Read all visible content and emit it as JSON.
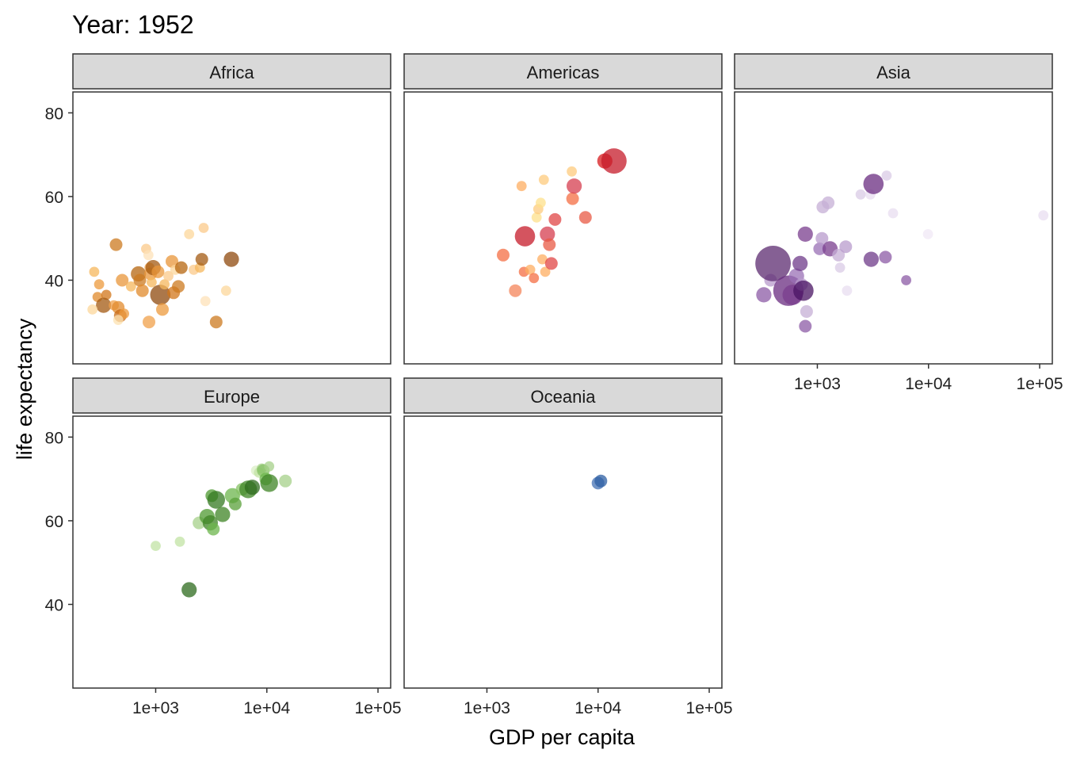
{
  "chart_data": {
    "type": "scatter",
    "title": "Year: 1952",
    "xlabel": "GDP per capita",
    "ylabel": "life expectancy",
    "x_scale": "log10",
    "xlim": [
      180,
      130000
    ],
    "ylim": [
      20,
      85
    ],
    "x_ticks": [
      1000,
      10000,
      100000
    ],
    "x_tick_labels": [
      "1e+03",
      "1e+04",
      "1e+05"
    ],
    "y_ticks": [
      40,
      60,
      80
    ],
    "y_tick_labels": [
      "40",
      "60",
      "80"
    ],
    "grid": false,
    "legend": "none",
    "facets": [
      {
        "name": "Africa",
        "points": [
          {
            "x": 440,
            "y": 48.5,
            "size": 5,
            "color": "#cc7a1f"
          },
          {
            "x": 280,
            "y": 42.0,
            "size": 4,
            "color": "#f5b75c"
          },
          {
            "x": 310,
            "y": 39.0,
            "size": 4,
            "color": "#ec9a3c"
          },
          {
            "x": 300,
            "y": 36.0,
            "size": 4,
            "color": "#e08a2b"
          },
          {
            "x": 360,
            "y": 36.5,
            "size": 4,
            "color": "#d27619"
          },
          {
            "x": 340,
            "y": 34.0,
            "size": 6,
            "color": "#a35a12"
          },
          {
            "x": 270,
            "y": 33.0,
            "size": 4,
            "color": "#fcd79b"
          },
          {
            "x": 420,
            "y": 34.0,
            "size": 4,
            "color": "#f0a04a"
          },
          {
            "x": 460,
            "y": 33.5,
            "size": 5,
            "color": "#e28b2d"
          },
          {
            "x": 480,
            "y": 31.5,
            "size": 5,
            "color": "#c76a14"
          },
          {
            "x": 520,
            "y": 32.0,
            "size": 4,
            "color": "#ec9a3c"
          },
          {
            "x": 500,
            "y": 40.0,
            "size": 5,
            "color": "#e8963a"
          },
          {
            "x": 460,
            "y": 30.5,
            "size": 4,
            "color": "#fce1b0"
          },
          {
            "x": 600,
            "y": 38.5,
            "size": 4,
            "color": "#f5b75c"
          },
          {
            "x": 700,
            "y": 41.5,
            "size": 6,
            "color": "#b5650f"
          },
          {
            "x": 720,
            "y": 40.0,
            "size": 5,
            "color": "#cc7a1f"
          },
          {
            "x": 760,
            "y": 37.5,
            "size": 5,
            "color": "#e08a2b"
          },
          {
            "x": 820,
            "y": 47.5,
            "size": 4,
            "color": "#fbc98a"
          },
          {
            "x": 860,
            "y": 46.0,
            "size": 4,
            "color": "#fde2b8"
          },
          {
            "x": 880,
            "y": 43.0,
            "size": 4,
            "color": "#f0a04a"
          },
          {
            "x": 900,
            "y": 41.5,
            "size": 5,
            "color": "#e8963a"
          },
          {
            "x": 920,
            "y": 39.5,
            "size": 4,
            "color": "#f5b75c"
          },
          {
            "x": 950,
            "y": 43.0,
            "size": 6,
            "color": "#a35a12"
          },
          {
            "x": 870,
            "y": 30.0,
            "size": 5,
            "color": "#f0a04a"
          },
          {
            "x": 1050,
            "y": 42.0,
            "size": 5,
            "color": "#e8963a"
          },
          {
            "x": 1100,
            "y": 36.5,
            "size": 8,
            "color": "#8f4a0e"
          },
          {
            "x": 1150,
            "y": 33.0,
            "size": 5,
            "color": "#ec9a3c"
          },
          {
            "x": 1200,
            "y": 39.0,
            "size": 4,
            "color": "#f5b75c"
          },
          {
            "x": 1300,
            "y": 41.0,
            "size": 4,
            "color": "#fbc98a"
          },
          {
            "x": 1400,
            "y": 44.5,
            "size": 5,
            "color": "#e8963a"
          },
          {
            "x": 1450,
            "y": 37.0,
            "size": 5,
            "color": "#d27619"
          },
          {
            "x": 1500,
            "y": 42.5,
            "size": 4,
            "color": "#fcd79b"
          },
          {
            "x": 1600,
            "y": 38.5,
            "size": 5,
            "color": "#cc7a1f"
          },
          {
            "x": 1700,
            "y": 43.0,
            "size": 5,
            "color": "#b5650f"
          },
          {
            "x": 2000,
            "y": 51.0,
            "size": 4,
            "color": "#fcd79b"
          },
          {
            "x": 2200,
            "y": 42.5,
            "size": 4,
            "color": "#fbc98a"
          },
          {
            "x": 2500,
            "y": 43.0,
            "size": 4,
            "color": "#f5b75c"
          },
          {
            "x": 2600,
            "y": 45.0,
            "size": 5,
            "color": "#a35a12"
          },
          {
            "x": 2700,
            "y": 52.5,
            "size": 4,
            "color": "#fbc98a"
          },
          {
            "x": 2800,
            "y": 35.0,
            "size": 4,
            "color": "#fde2b8"
          },
          {
            "x": 3500,
            "y": 30.0,
            "size": 5,
            "color": "#cc7a1f"
          },
          {
            "x": 4300,
            "y": 37.5,
            "size": 4,
            "color": "#fcd79b"
          },
          {
            "x": 4800,
            "y": 45.0,
            "size": 6,
            "color": "#8f4a0e"
          }
        ]
      },
      {
        "name": "Americas",
        "points": [
          {
            "x": 1400,
            "y": 46.0,
            "size": 5,
            "color": "#f46d43"
          },
          {
            "x": 1800,
            "y": 37.5,
            "size": 5,
            "color": "#f4845a"
          },
          {
            "x": 2050,
            "y": 62.5,
            "size": 4,
            "color": "#fdae61"
          },
          {
            "x": 2150,
            "y": 42.0,
            "size": 4,
            "color": "#f46d43"
          },
          {
            "x": 2200,
            "y": 50.5,
            "size": 8,
            "color": "#c51b2a"
          },
          {
            "x": 2450,
            "y": 42.5,
            "size": 4,
            "color": "#fdae61"
          },
          {
            "x": 2650,
            "y": 40.5,
            "size": 4,
            "color": "#f46d43"
          },
          {
            "x": 2800,
            "y": 55.0,
            "size": 4,
            "color": "#fee08b"
          },
          {
            "x": 2900,
            "y": 57.0,
            "size": 4,
            "color": "#fdcb7d"
          },
          {
            "x": 3050,
            "y": 58.5,
            "size": 4,
            "color": "#fee08b"
          },
          {
            "x": 3150,
            "y": 45.0,
            "size": 4,
            "color": "#fdae61"
          },
          {
            "x": 3250,
            "y": 64.0,
            "size": 4,
            "color": "#fdcb7d"
          },
          {
            "x": 3350,
            "y": 42.0,
            "size": 4,
            "color": "#fdae61"
          },
          {
            "x": 3500,
            "y": 51.0,
            "size": 6,
            "color": "#d53e4f"
          },
          {
            "x": 3650,
            "y": 48.5,
            "size": 5,
            "color": "#e85a44"
          },
          {
            "x": 3800,
            "y": 44.0,
            "size": 5,
            "color": "#e04545"
          },
          {
            "x": 4100,
            "y": 54.5,
            "size": 5,
            "color": "#e04545"
          },
          {
            "x": 5800,
            "y": 66.0,
            "size": 4,
            "color": "#fdcb7d"
          },
          {
            "x": 5900,
            "y": 59.5,
            "size": 5,
            "color": "#f46d43"
          },
          {
            "x": 6100,
            "y": 62.5,
            "size": 6,
            "color": "#d53e4f"
          },
          {
            "x": 7700,
            "y": 55.0,
            "size": 5,
            "color": "#e85a44"
          },
          {
            "x": 11500,
            "y": 68.5,
            "size": 6,
            "color": "#d7191c"
          },
          {
            "x": 13900,
            "y": 68.5,
            "size": 10,
            "color": "#c51b2a"
          }
        ]
      },
      {
        "name": "Asia",
        "points": [
          {
            "x": 330,
            "y": 36.5,
            "size": 6,
            "color": "#8c5ba5"
          },
          {
            "x": 380,
            "y": 40.0,
            "size": 5,
            "color": "#b89bcc"
          },
          {
            "x": 400,
            "y": 44.0,
            "size": 14,
            "color": "#5c2b70"
          },
          {
            "x": 550,
            "y": 37.5,
            "size": 12,
            "color": "#6a2c80"
          },
          {
            "x": 600,
            "y": 36.5,
            "size": 8,
            "color": "#7a3e8e"
          },
          {
            "x": 650,
            "y": 41.0,
            "size": 6,
            "color": "#9a70b5"
          },
          {
            "x": 700,
            "y": 44.0,
            "size": 6,
            "color": "#6f3b8a"
          },
          {
            "x": 720,
            "y": 39.0,
            "size": 5,
            "color": "#b89bcc"
          },
          {
            "x": 750,
            "y": 37.5,
            "size": 8,
            "color": "#4a1463"
          },
          {
            "x": 800,
            "y": 32.5,
            "size": 5,
            "color": "#c5afd6"
          },
          {
            "x": 780,
            "y": 29.0,
            "size": 5,
            "color": "#8c5ba5"
          },
          {
            "x": 780,
            "y": 51.0,
            "size": 6,
            "color": "#7a3e8e"
          },
          {
            "x": 1050,
            "y": 47.5,
            "size": 5,
            "color": "#9a70b5"
          },
          {
            "x": 1100,
            "y": 50.0,
            "size": 5,
            "color": "#b89bcc"
          },
          {
            "x": 1120,
            "y": 57.5,
            "size": 5,
            "color": "#c5afd6"
          },
          {
            "x": 1250,
            "y": 58.5,
            "size": 5,
            "color": "#c5afd6"
          },
          {
            "x": 1300,
            "y": 47.5,
            "size": 6,
            "color": "#7a3e8e"
          },
          {
            "x": 1550,
            "y": 46.0,
            "size": 5,
            "color": "#c5afd6"
          },
          {
            "x": 1600,
            "y": 43.0,
            "size": 4,
            "color": "#dacbe6"
          },
          {
            "x": 1800,
            "y": 48.0,
            "size": 5,
            "color": "#b89bcc"
          },
          {
            "x": 1850,
            "y": 37.5,
            "size": 4,
            "color": "#e8def0"
          },
          {
            "x": 2450,
            "y": 60.5,
            "size": 4,
            "color": "#dacbe6"
          },
          {
            "x": 3000,
            "y": 60.5,
            "size": 4,
            "color": "#e8def0"
          },
          {
            "x": 3050,
            "y": 45.0,
            "size": 6,
            "color": "#6f3b8a"
          },
          {
            "x": 3200,
            "y": 63.0,
            "size": 8,
            "color": "#6a2c80"
          },
          {
            "x": 4100,
            "y": 45.5,
            "size": 5,
            "color": "#8c5ba5"
          },
          {
            "x": 4200,
            "y": 65.0,
            "size": 4,
            "color": "#dacbe6"
          },
          {
            "x": 4800,
            "y": 56.0,
            "size": 4,
            "color": "#e8def0"
          },
          {
            "x": 6300,
            "y": 40.0,
            "size": 4,
            "color": "#8c5ba5"
          },
          {
            "x": 9900,
            "y": 51.0,
            "size": 4,
            "color": "#f0e8f5"
          },
          {
            "x": 108000,
            "y": 55.5,
            "size": 4,
            "color": "#e8def0"
          }
        ]
      },
      {
        "name": "Europe",
        "points": [
          {
            "x": 1000,
            "y": 54.0,
            "size": 4,
            "color": "#c2e3a4"
          },
          {
            "x": 1650,
            "y": 55.0,
            "size": 4,
            "color": "#c2e3a4"
          },
          {
            "x": 2000,
            "y": 43.5,
            "size": 6,
            "color": "#2e6b1e"
          },
          {
            "x": 2450,
            "y": 59.5,
            "size": 5,
            "color": "#a6d08a"
          },
          {
            "x": 2900,
            "y": 61.0,
            "size": 6,
            "color": "#4f9a32"
          },
          {
            "x": 3100,
            "y": 59.5,
            "size": 6,
            "color": "#3f8426"
          },
          {
            "x": 3200,
            "y": 66.0,
            "size": 5,
            "color": "#4f9a32"
          },
          {
            "x": 3500,
            "y": 65.0,
            "size": 7,
            "color": "#347a22"
          },
          {
            "x": 3300,
            "y": 58.0,
            "size": 5,
            "color": "#6cb54c"
          },
          {
            "x": 4000,
            "y": 61.5,
            "size": 6,
            "color": "#3f8426"
          },
          {
            "x": 4900,
            "y": 66.0,
            "size": 6,
            "color": "#6cb54c"
          },
          {
            "x": 5200,
            "y": 64.0,
            "size": 5,
            "color": "#5aa03a"
          },
          {
            "x": 6000,
            "y": 67.5,
            "size": 5,
            "color": "#86c264"
          },
          {
            "x": 6800,
            "y": 67.5,
            "size": 7,
            "color": "#3f8426"
          },
          {
            "x": 7400,
            "y": 68.0,
            "size": 6,
            "color": "#2e6b1e"
          },
          {
            "x": 8000,
            "y": 72.0,
            "size": 4,
            "color": "#d9efc4"
          },
          {
            "x": 8500,
            "y": 71.5,
            "size": 4,
            "color": "#c2e3a4"
          },
          {
            "x": 9000,
            "y": 72.5,
            "size": 4,
            "color": "#a6d08a"
          },
          {
            "x": 9300,
            "y": 72.0,
            "size": 5,
            "color": "#86c264"
          },
          {
            "x": 9800,
            "y": 70.0,
            "size": 5,
            "color": "#6cb54c"
          },
          {
            "x": 10500,
            "y": 69.0,
            "size": 7,
            "color": "#3f8426"
          },
          {
            "x": 10500,
            "y": 73.0,
            "size": 4,
            "color": "#a6d08a"
          },
          {
            "x": 14700,
            "y": 69.5,
            "size": 5,
            "color": "#a6d08a"
          }
        ]
      },
      {
        "name": "Oceania",
        "points": [
          {
            "x": 10000,
            "y": 69.0,
            "size": 5,
            "color": "#4472b4"
          },
          {
            "x": 10600,
            "y": 69.5,
            "size": 5,
            "color": "#2e5fa3"
          }
        ]
      }
    ]
  }
}
